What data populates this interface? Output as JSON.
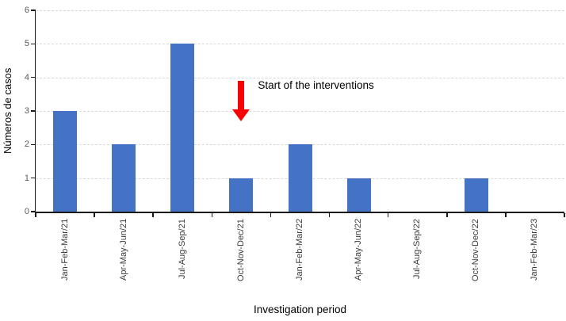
{
  "chart_data": {
    "type": "bar",
    "title": "",
    "categories": [
      "Jan-Feb-Mar/21",
      "Apr-May-Jun/21",
      "Jul-Aug-Sep/21",
      "Oct-Nov-Dec/21",
      "Jan-Feb-Mar/22",
      "Apr-May-Jun/22",
      "Jul-Aug-Sep/22",
      "Oct-Nov-Dec/22",
      "Jan-Feb-Mar/23"
    ],
    "values": [
      3,
      2,
      5,
      1,
      2,
      1,
      0,
      1,
      0
    ],
    "xlabel": "Investigation period",
    "ylabel": "Números de casos",
    "ylim": [
      0,
      6
    ],
    "yticks": [
      0,
      1,
      2,
      3,
      4,
      5,
      6
    ],
    "grid": "horizontal-dashed",
    "legend": "none",
    "bar_color": "#4472C4",
    "gridline_color": "#d9d9d9",
    "axis_color": "#1a1a1a",
    "y_tick_label_color": "#595959",
    "x_tick_label_color": "#3b3b3b",
    "annotation": {
      "text": "Start of the interventions",
      "arrow_color": "#F40404",
      "arrow_direction": "down",
      "points_to_category": "Oct-Nov-Dec/21",
      "category_index": 3
    }
  }
}
